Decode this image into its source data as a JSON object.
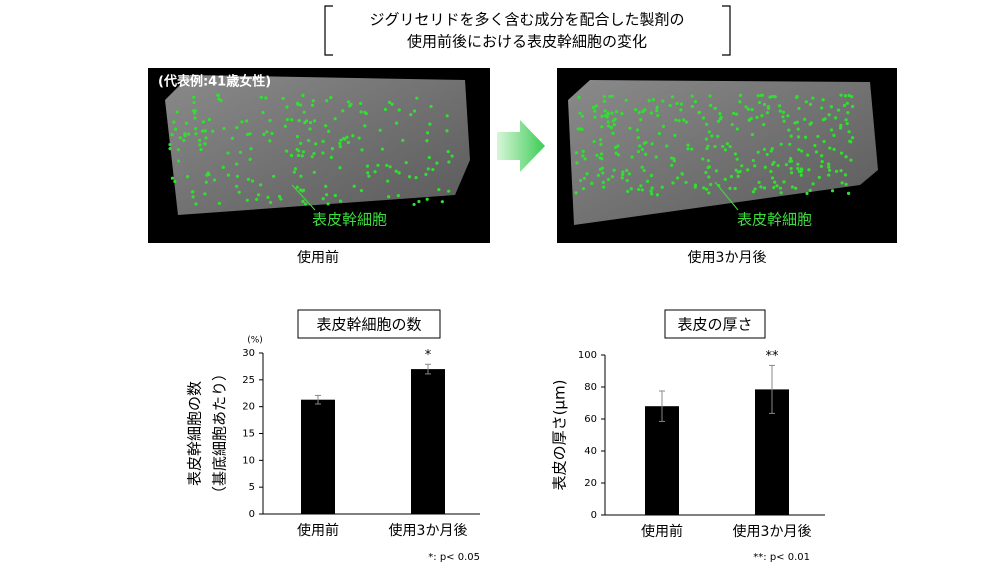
{
  "header": {
    "title_lines": [
      "ジグリセリドを多く含む成分を配合した製剤の",
      "使用前後における表皮幹細胞の変化"
    ]
  },
  "images": {
    "example_label": "(代表例:41歳女性)",
    "cell_label": "表皮幹細胞",
    "captions": [
      "使用前",
      "使用3か月後"
    ]
  },
  "chart_data": [
    {
      "type": "bar",
      "title": "表皮幹細胞の数",
      "ylabel": [
        "表皮幹細胞の数",
        "（基底細胞あたり）"
      ],
      "y_unit": "(%)",
      "categories": [
        "使用前",
        "使用3か月後"
      ],
      "values": [
        21.3,
        27.0
      ],
      "errors": [
        0.8,
        0.9
      ],
      "value_annotations": [
        null,
        "*"
      ],
      "color": "#000000",
      "ylim": [
        0,
        30
      ],
      "yticks": [
        0,
        5,
        10,
        15,
        20,
        25,
        30
      ],
      "footnote": "*: p< 0.05"
    },
    {
      "type": "bar",
      "title": "表皮の厚さ",
      "ylabel": [
        "表皮の厚さ(μm)"
      ],
      "categories": [
        "使用前",
        "使用3か月後"
      ],
      "values": [
        68,
        78.5
      ],
      "errors": [
        9.5,
        15
      ],
      "value_annotations": [
        null,
        "**"
      ],
      "color": "#000000",
      "ylim": [
        0,
        100
      ],
      "yticks": [
        0,
        20,
        40,
        60,
        80,
        100
      ],
      "footnote": "**: p< 0.01"
    }
  ]
}
